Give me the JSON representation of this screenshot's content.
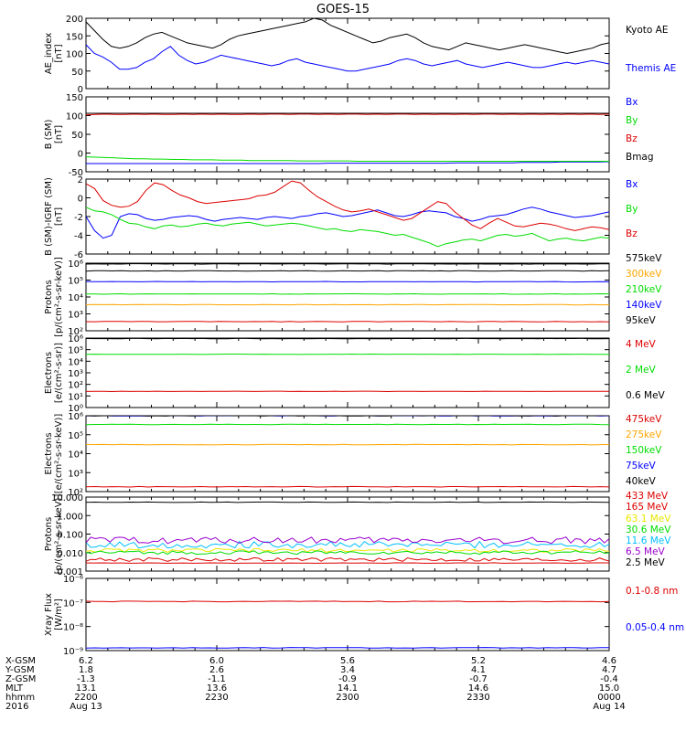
{
  "title": "GOES-15",
  "colors": {
    "black": "#000000",
    "blue": "#0000ff",
    "green": "#00dd00",
    "red": "#dd0000",
    "orange": "#ffa500",
    "cyan": "#00bfff",
    "yellow": "#e8e800",
    "purple": "#9900cc",
    "violet": "#8a2be2"
  },
  "time_axis": {
    "start": "2200",
    "end": "0000",
    "rows": [
      {
        "label": "X-GSM",
        "values": [
          "6.2",
          "6.0",
          "5.6",
          "5.2",
          "4.6"
        ]
      },
      {
        "label": "Y-GSM",
        "values": [
          "1.8",
          "2.6",
          "3.4",
          "4.1",
          "4.7"
        ]
      },
      {
        "label": "Z-GSM",
        "values": [
          "-1.3",
          "-1.1",
          "-0.9",
          "-0.7",
          "-0.4"
        ]
      },
      {
        "label": "MLT",
        "values": [
          "13.1",
          "13.6",
          "14.1",
          "14.6",
          "15.0"
        ]
      },
      {
        "label": "hhmm",
        "values": [
          "2200",
          "2230",
          "2300",
          "2330",
          "0000"
        ]
      }
    ],
    "year": "2016",
    "date_start": "Aug 13",
    "date_end": "Aug 14"
  },
  "chart_data": [
    {
      "id": "ae",
      "type": "line",
      "ylabel": "AE_index\n[nT]",
      "ylim": [
        0,
        200
      ],
      "scale": "linear",
      "yticks": [
        "0",
        "50",
        "100",
        "150",
        "200"
      ],
      "series": [
        {
          "name": "Kyoto AE",
          "color": "#000000",
          "values": [
            190,
            165,
            140,
            120,
            115,
            120,
            130,
            145,
            155,
            160,
            150,
            140,
            130,
            125,
            120,
            115,
            125,
            140,
            150,
            155,
            160,
            165,
            170,
            175,
            180,
            185,
            190,
            200,
            195,
            180,
            170,
            160,
            150,
            140,
            130,
            135,
            145,
            150,
            155,
            145,
            130,
            120,
            115,
            110,
            120,
            130,
            125,
            120,
            115,
            110,
            115,
            120,
            125,
            120,
            115,
            110,
            105,
            100,
            105,
            110,
            115,
            125,
            130
          ]
        },
        {
          "name": "Themis AE",
          "color": "#0000ff",
          "values": [
            125,
            100,
            90,
            75,
            55,
            55,
            60,
            75,
            85,
            105,
            120,
            95,
            80,
            70,
            75,
            85,
            95,
            90,
            85,
            80,
            75,
            70,
            65,
            70,
            80,
            85,
            75,
            70,
            65,
            60,
            55,
            50,
            50,
            55,
            60,
            65,
            70,
            80,
            85,
            80,
            70,
            65,
            70,
            75,
            80,
            70,
            65,
            60,
            65,
            70,
            75,
            70,
            65,
            60,
            60,
            65,
            70,
            75,
            70,
            75,
            80,
            75,
            70
          ]
        }
      ]
    },
    {
      "id": "bsm",
      "type": "line",
      "ylabel": "B (SM)\n[nT]",
      "ylim": [
        -50,
        150
      ],
      "scale": "linear",
      "yticks": [
        "-50",
        "0",
        "50",
        "100",
        "150"
      ],
      "series": [
        {
          "name": "Bx",
          "color": "#0000ff",
          "values": [
            -28,
            -28,
            -28,
            -28,
            -28,
            -28,
            -28,
            -28,
            -28,
            -28,
            -28,
            -28,
            -28,
            -28,
            -28,
            -28,
            -28,
            -28,
            -28,
            -28,
            -28,
            -28,
            -28,
            -28,
            -28,
            -27,
            -27,
            -27,
            -27,
            -27,
            -27,
            -27,
            -27,
            -27,
            -27,
            -27,
            -27,
            -27,
            -26,
            -26,
            -26,
            -26,
            -26,
            -26,
            -26,
            -25,
            -25,
            -25,
            -25,
            -24,
            -24,
            -24,
            -24,
            -24,
            -23
          ]
        },
        {
          "name": "By",
          "color": "#00dd00",
          "values": [
            -10,
            -11,
            -12,
            -13,
            -14,
            -15,
            -15,
            -16,
            -16,
            -17,
            -17,
            -18,
            -18,
            -18,
            -19,
            -19,
            -19,
            -20,
            -20,
            -20,
            -20,
            -20,
            -21,
            -21,
            -21,
            -21,
            -21,
            -21,
            -22,
            -22,
            -22,
            -22,
            -22,
            -22,
            -22,
            -22,
            -22,
            -22,
            -22,
            -22,
            -22,
            -22,
            -22,
            -22,
            -22,
            -22,
            -22,
            -22,
            -22,
            -22,
            -22,
            -22,
            -22,
            -22,
            -22
          ]
        },
        {
          "name": "Bz",
          "color": "#dd0000",
          "values": [
            102,
            103,
            104,
            103,
            103,
            104,
            103,
            104,
            103,
            103,
            104,
            103,
            104,
            103,
            104,
            103,
            103,
            104,
            103,
            104,
            104,
            103,
            104,
            104,
            103,
            104,
            103,
            104,
            104,
            103,
            104,
            103,
            104,
            104,
            103,
            104,
            103,
            104,
            103,
            104,
            103,
            104,
            104,
            103,
            104,
            103,
            104,
            103,
            104,
            103,
            104,
            103,
            104,
            103,
            104
          ]
        },
        {
          "name": "Bmag",
          "color": "#000000",
          "values": [
            106,
            106,
            106,
            106,
            106,
            106,
            106,
            106,
            106,
            106,
            106,
            106,
            106,
            106,
            106,
            106,
            106,
            106,
            106,
            106,
            106,
            106,
            106,
            106,
            106,
            106,
            106,
            106,
            106,
            106,
            106,
            106,
            106,
            106,
            106,
            106,
            106,
            106,
            106,
            106,
            106,
            106,
            106,
            106,
            106,
            106,
            106,
            106,
            106,
            106,
            106,
            106,
            106,
            106,
            106
          ]
        }
      ]
    },
    {
      "id": "bdiff",
      "type": "line",
      "ylabel": "B (SM)-IGRF (SM)\n[nT]",
      "ylim": [
        -6,
        2
      ],
      "scale": "linear",
      "yticks": [
        "-6",
        "-4",
        "-2",
        "0",
        "2"
      ],
      "series": [
        {
          "name": "Bx",
          "color": "#0000ff",
          "values": [
            -2.0,
            -3.5,
            -4.3,
            -4.0,
            -2.0,
            -1.7,
            -1.8,
            -2.2,
            -2.4,
            -2.3,
            -2.1,
            -2.0,
            -1.9,
            -2.0,
            -2.3,
            -2.5,
            -2.3,
            -2.2,
            -2.1,
            -2.2,
            -2.3,
            -2.1,
            -2.0,
            -2.1,
            -2.2,
            -2.0,
            -1.9,
            -1.7,
            -1.6,
            -1.8,
            -2.0,
            -1.9,
            -1.7,
            -1.5,
            -1.3,
            -1.6,
            -1.9,
            -2.0,
            -1.8,
            -1.5,
            -1.4,
            -1.5,
            -1.6,
            -2.0,
            -2.2,
            -2.5,
            -2.3,
            -2.0,
            -1.9,
            -1.8,
            -1.5,
            -1.2,
            -1.0,
            -1.2,
            -1.5,
            -1.7,
            -1.9,
            -2.1,
            -2.0,
            -1.9,
            -1.7,
            -1.5
          ]
        },
        {
          "name": "By",
          "color": "#00dd00",
          "values": [
            -1.0,
            -1.4,
            -1.5,
            -1.8,
            -2.3,
            -2.7,
            -2.8,
            -3.1,
            -3.3,
            -3.0,
            -2.9,
            -3.1,
            -3.0,
            -2.8,
            -2.7,
            -2.9,
            -3.0,
            -2.8,
            -2.7,
            -2.6,
            -2.8,
            -3.0,
            -2.9,
            -2.8,
            -2.7,
            -2.8,
            -3.0,
            -3.2,
            -3.4,
            -3.3,
            -3.5,
            -3.6,
            -3.4,
            -3.5,
            -3.6,
            -3.8,
            -4.0,
            -3.9,
            -4.2,
            -4.5,
            -4.8,
            -5.2,
            -4.9,
            -4.7,
            -4.5,
            -4.4,
            -4.6,
            -4.3,
            -4.0,
            -3.9,
            -4.1,
            -4.0,
            -3.8,
            -4.2,
            -4.6,
            -4.4,
            -4.3,
            -4.5,
            -4.6,
            -4.4,
            -4.2,
            -4.3
          ]
        },
        {
          "name": "Bz",
          "color": "#dd0000",
          "values": [
            1.5,
            1.0,
            -0.3,
            -0.8,
            -1.0,
            -0.9,
            -0.4,
            0.8,
            1.6,
            1.4,
            0.8,
            0.3,
            0.0,
            -0.4,
            -0.6,
            -0.5,
            -0.4,
            -0.3,
            -0.2,
            -0.1,
            0.2,
            0.3,
            0.6,
            1.2,
            1.8,
            1.6,
            0.8,
            0.1,
            -0.4,
            -0.9,
            -1.3,
            -1.5,
            -1.4,
            -1.2,
            -1.5,
            -1.8,
            -2.1,
            -2.4,
            -2.2,
            -1.6,
            -1.0,
            -0.4,
            -0.6,
            -1.5,
            -2.2,
            -2.9,
            -3.3,
            -2.7,
            -2.2,
            -2.6,
            -3.0,
            -3.1,
            -2.9,
            -2.7,
            -2.8,
            -3.0,
            -3.3,
            -3.5,
            -3.3,
            -3.1,
            -3.2,
            -3.4
          ]
        }
      ]
    },
    {
      "id": "protons_mag",
      "type": "line",
      "ylabel": "Protons\n[p/(cm²-s-sr-keV)]",
      "ylim": [
        100,
        1000000
      ],
      "scale": "log",
      "yticks": [
        "10²",
        "10³",
        "10⁴",
        "10⁵",
        "10⁶"
      ],
      "series": [
        {
          "name": "575keV",
          "color": "#000000",
          "level": 350000
        },
        {
          "name": "300keV",
          "color": "#ffa500",
          "level": 3500
        },
        {
          "name": "210keV",
          "color": "#00dd00",
          "level": 15000
        },
        {
          "name": "140keV",
          "color": "#0000ff",
          "level": 80000
        },
        {
          "name": "95keV",
          "color": "#000000",
          "level": 900000
        },
        {
          "name": "",
          "color": "#dd0000",
          "level": 350
        }
      ]
    },
    {
      "id": "electrons_mag",
      "type": "line",
      "ylabel": "Electrons\n[e/(cm²-s-sr)]",
      "ylim": [
        1,
        1000000
      ],
      "scale": "log",
      "yticks": [
        "10⁰",
        "10¹",
        "10²",
        "10³",
        "10⁴",
        "10⁵",
        "10⁶"
      ],
      "series": [
        {
          "name": "4 MeV",
          "color": "#dd0000",
          "level": 25
        },
        {
          "name": "2 MeV",
          "color": "#00dd00",
          "level": 40000
        },
        {
          "name": "0.6 MeV",
          "color": "#000000",
          "level": 900000
        }
      ]
    },
    {
      "id": "electrons_maged",
      "type": "line",
      "ylabel": "Electrons\n[e/(cm²-s-sr-keV)]",
      "ylim": [
        100,
        1000000
      ],
      "scale": "log",
      "yticks": [
        "10²",
        "10³",
        "10⁴",
        "10⁵",
        "10⁶"
      ],
      "series": [
        {
          "name": "475keV",
          "color": "#dd0000",
          "level": 180
        },
        {
          "name": "275keV",
          "color": "#ffa500",
          "level": 30000
        },
        {
          "name": "150keV",
          "color": "#00dd00",
          "level": 350000
        },
        {
          "name": "75keV",
          "color": "#0000ff",
          "level": 1000000
        },
        {
          "name": "40keV",
          "color": "#000000",
          "level": 1000000
        }
      ]
    },
    {
      "id": "protons_eps",
      "type": "line",
      "ylabel": "Protons\n[p/(cm²-s-sr-keV)]",
      "ylim": [
        0.001,
        100
      ],
      "scale": "log",
      "yticks": [
        "0.001",
        "0.010",
        "0.100",
        "1.000",
        "10.000"
      ],
      "series": [
        {
          "name": "433 MeV",
          "color": "#dd0000",
          "level": 0.0035
        },
        {
          "name": "165 MeV",
          "color": "#dd0000",
          "level": 0.006
        },
        {
          "name": "63.1 MeV",
          "color": "#e8e800",
          "level": 0.025
        },
        {
          "name": "30.6 MeV",
          "color": "#00dd00",
          "level": 0.018
        },
        {
          "name": "11.6 MeV",
          "color": "#00bfff",
          "level": 0.06
        },
        {
          "name": "6.5 MeV",
          "color": "#9900cc",
          "level": 0.12
        },
        {
          "name": "2.5 MeV",
          "color": "#000000",
          "level": 45
        }
      ]
    },
    {
      "id": "xray",
      "type": "line",
      "ylabel": "Xray Flux\n[W/m²]",
      "ylim": [
        1e-09,
        1e-06
      ],
      "scale": "log",
      "yticks": [
        "10⁻⁹",
        "10⁻⁸",
        "10⁻⁷",
        "10⁻⁶"
      ],
      "series": [
        {
          "name": "0.1-0.8 nm",
          "color": "#dd0000",
          "level": 1.1e-07
        },
        {
          "name": "0.05-0.4 nm",
          "color": "#0000ff",
          "level": 1.3e-09
        }
      ]
    }
  ]
}
